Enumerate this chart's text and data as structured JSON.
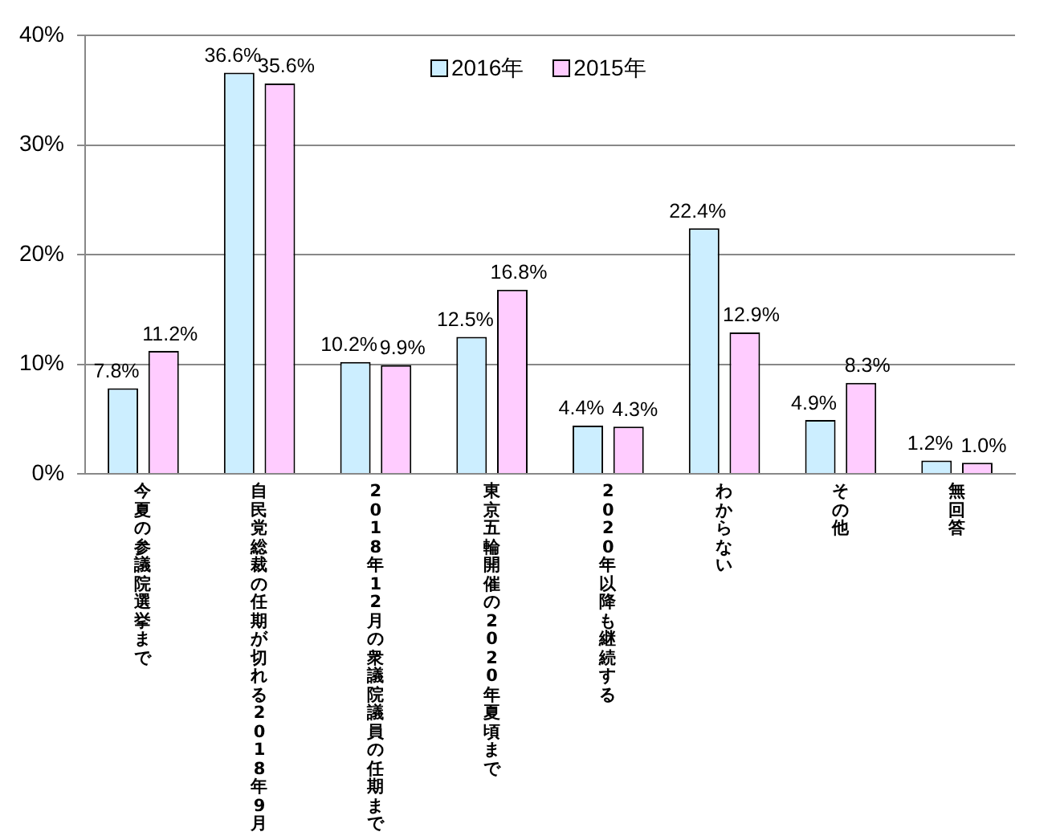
{
  "chart_data": {
    "type": "bar",
    "categories": [
      "今夏の参議院選挙まで",
      "自民党総裁の任期が切れる2018年9月",
      "2018年12月の衆議院議員の任期まで",
      "東京五輪開催の2020年夏頃まで",
      "2020年以降も継続する",
      "わからない",
      "その他",
      "無回答"
    ],
    "series": [
      {
        "name": "2016年",
        "color": "#cceeff",
        "values": [
          7.8,
          36.6,
          10.2,
          12.5,
          4.4,
          22.4,
          4.9,
          1.2
        ],
        "value_labels": [
          "7.8%",
          "36.6%",
          "10.2%",
          "12.5%",
          "4.4%",
          "22.4%",
          "4.9%",
          "1.2%"
        ]
      },
      {
        "name": "2015年",
        "color": "#ffccff",
        "values": [
          11.2,
          35.6,
          9.9,
          16.8,
          4.3,
          12.9,
          8.3,
          1.0
        ],
        "value_labels": [
          "11.2%",
          "35.6%",
          "9.9%",
          "16.8%",
          "4.3%",
          "12.9%",
          "8.3%",
          "1.0%"
        ]
      }
    ],
    "ylim": [
      0,
      40
    ],
    "yticks": [
      {
        "value": 0,
        "label": "0%"
      },
      {
        "value": 10,
        "label": "10%"
      },
      {
        "value": 20,
        "label": "20%"
      },
      {
        "value": 30,
        "label": "30%"
      },
      {
        "value": 40,
        "label": "40%"
      }
    ],
    "grid": "y",
    "legend": "top"
  }
}
